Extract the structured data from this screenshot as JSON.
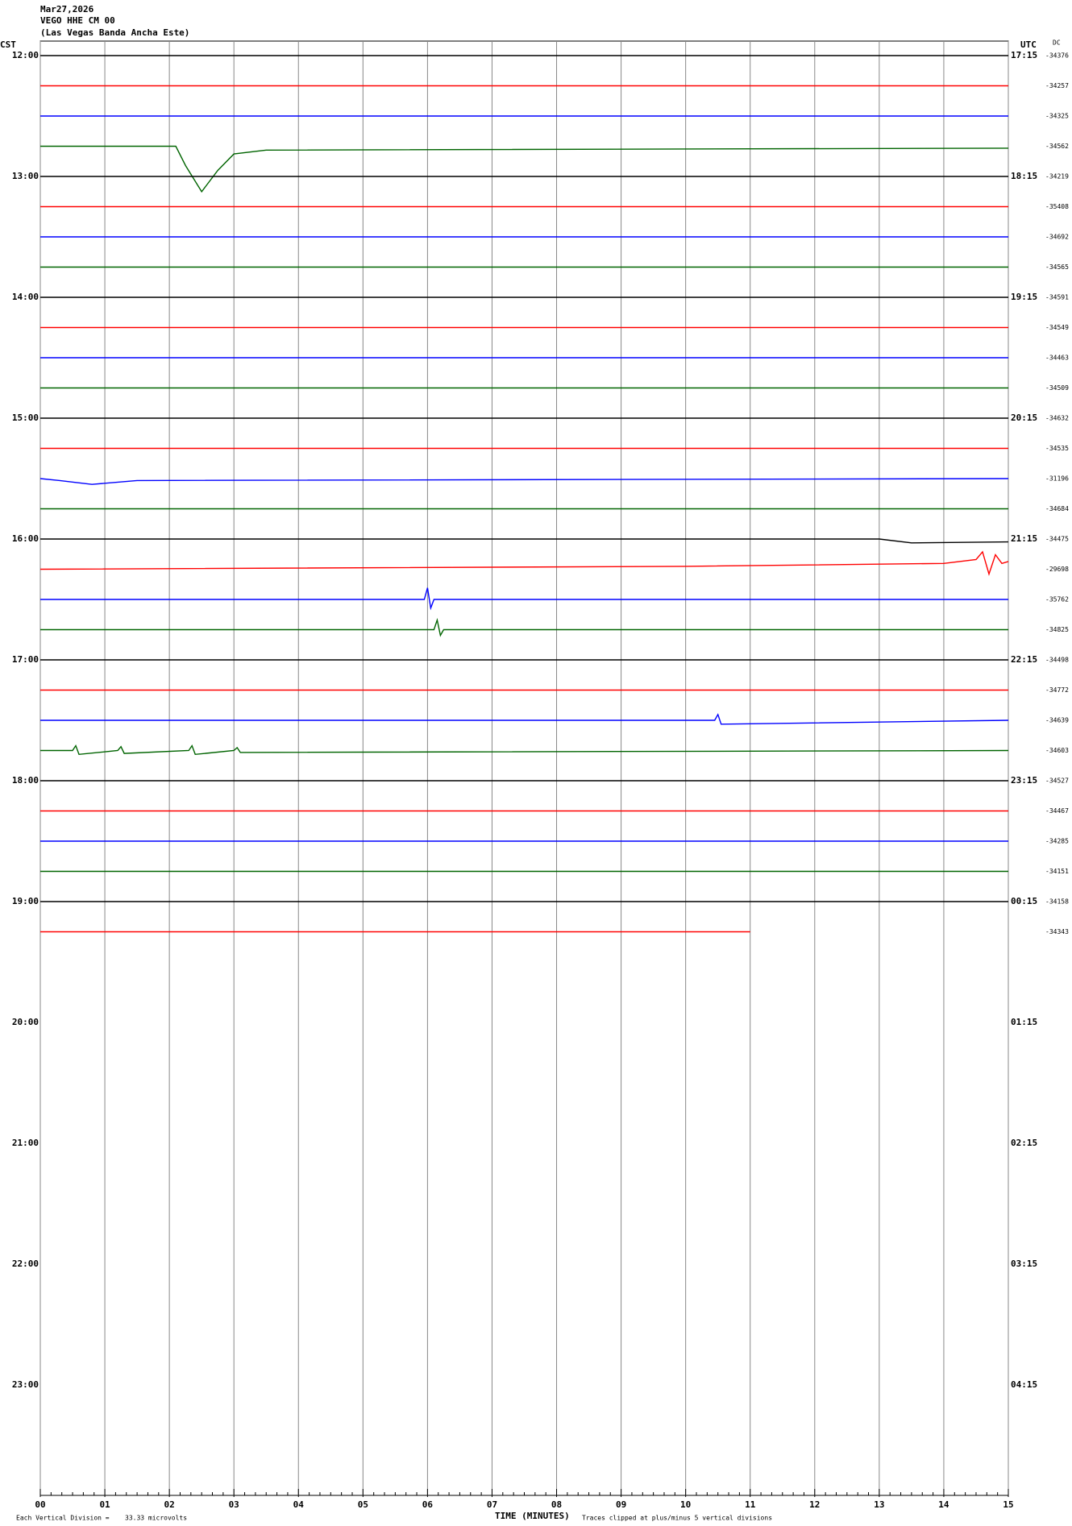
{
  "chart_data": {
    "type": "helicorder",
    "header": [
      "Mar27,2026",
      "VEGO HHE CM 00",
      "(Las Vegas Banda Ancha Este)"
    ],
    "left_axis_title": "CST",
    "right_axis_title": "UTC",
    "dc_title": "DC",
    "hours_cst": [
      "12:00",
      "13:00",
      "14:00",
      "15:00",
      "16:00",
      "17:00",
      "18:00",
      "19:00",
      "20:00",
      "21:00",
      "22:00",
      "23:00"
    ],
    "hours_utc": [
      "17:15",
      "18:15",
      "19:15",
      "20:15",
      "21:15",
      "22:15",
      "23:15",
      "00:15",
      "01:15",
      "02:15",
      "03:15",
      "04:15"
    ],
    "xlabel": "TIME (MINUTES)",
    "xlim": [
      0,
      15
    ],
    "xticks": [
      {
        "value": 0,
        "label": "00"
      },
      {
        "value": 1,
        "label": "01"
      },
      {
        "value": 2,
        "label": "02"
      },
      {
        "value": 3,
        "label": "03"
      },
      {
        "value": 4,
        "label": "04"
      },
      {
        "value": 5,
        "label": "05"
      },
      {
        "value": 6,
        "label": "06"
      },
      {
        "value": 7,
        "label": "07"
      },
      {
        "value": 8,
        "label": "08"
      },
      {
        "value": 9,
        "label": "09"
      },
      {
        "value": 10,
        "label": "10"
      },
      {
        "value": 11,
        "label": "11"
      },
      {
        "value": 12,
        "label": "12"
      },
      {
        "value": 13,
        "label": "13"
      },
      {
        "value": 14,
        "label": "14"
      },
      {
        "value": 15,
        "label": "15"
      }
    ],
    "footer_scale_label": "Each Vertical Division =",
    "footer_scale_value": "33.33 microvolts",
    "footer_clip_note": "Traces clipped at plus/minus 5 vertical divisions",
    "traces": [
      {
        "color": "#000000",
        "dc": "-34376",
        "x": [
          0,
          15
        ],
        "values": [
          0,
          0
        ]
      },
      {
        "color": "#ff0000",
        "dc": "-34257",
        "x": [
          0,
          15
        ],
        "values": [
          0,
          0
        ]
      },
      {
        "color": "#0000ff",
        "dc": "-34325",
        "x": [
          0,
          15
        ],
        "values": [
          0,
          0
        ]
      },
      {
        "color": "#006400",
        "dc": "-34562",
        "x": [
          0,
          2.1,
          2.25,
          2.5,
          2.75,
          3,
          3.5,
          15
        ],
        "values": [
          0,
          0,
          -2,
          -4.7,
          -2.5,
          -0.8,
          -0.4,
          -0.2
        ]
      },
      {
        "color": "#000000",
        "dc": "-34219",
        "x": [
          0,
          15
        ],
        "values": [
          0,
          0
        ]
      },
      {
        "color": "#ff0000",
        "dc": "-35408",
        "x": [
          0,
          15
        ],
        "values": [
          0,
          0
        ]
      },
      {
        "color": "#0000ff",
        "dc": "-34692",
        "x": [
          0,
          15
        ],
        "values": [
          0,
          0
        ]
      },
      {
        "color": "#006400",
        "dc": "-34565",
        "x": [
          0,
          15
        ],
        "values": [
          0,
          0
        ]
      },
      {
        "color": "#000000",
        "dc": "-34591",
        "x": [
          0,
          15
        ],
        "values": [
          0,
          0
        ]
      },
      {
        "color": "#ff0000",
        "dc": "-34549",
        "x": [
          0,
          15
        ],
        "values": [
          0,
          0
        ]
      },
      {
        "color": "#0000ff",
        "dc": "-34463",
        "x": [
          0,
          15
        ],
        "values": [
          0,
          0
        ]
      },
      {
        "color": "#006400",
        "dc": "-34509",
        "x": [
          0,
          15
        ],
        "values": [
          0,
          0
        ]
      },
      {
        "color": "#000000",
        "dc": "-34632",
        "x": [
          0,
          15
        ],
        "values": [
          0,
          0
        ]
      },
      {
        "color": "#ff0000",
        "dc": "-34535",
        "x": [
          0,
          15
        ],
        "values": [
          0,
          0
        ]
      },
      {
        "color": "#0000ff",
        "dc": "-31196",
        "x": [
          0,
          0.3,
          0.8,
          1.5,
          15
        ],
        "values": [
          0,
          -0.2,
          -0.6,
          -0.2,
          0
        ]
      },
      {
        "color": "#006400",
        "dc": "-34684",
        "x": [
          0,
          15
        ],
        "values": [
          0,
          0
        ]
      },
      {
        "color": "#000000",
        "dc": "-34475",
        "x": [
          0,
          13,
          13.5,
          15
        ],
        "values": [
          0,
          0,
          -0.4,
          -0.3
        ]
      },
      {
        "color": "#ff0000",
        "dc": "-29698",
        "x": [
          0,
          10,
          14,
          14.5,
          14.6,
          14.7,
          14.8,
          14.9,
          15
        ],
        "values": [
          0,
          0.3,
          0.6,
          1,
          1.8,
          -0.5,
          1.5,
          0.6,
          0.8
        ]
      },
      {
        "color": "#0000ff",
        "dc": "-35762",
        "x": [
          0,
          5.95,
          6,
          6.05,
          6.1,
          15
        ],
        "values": [
          0,
          0,
          1.2,
          -0.9,
          0,
          0
        ]
      },
      {
        "color": "#006400",
        "dc": "-34825",
        "x": [
          0,
          6.1,
          6.15,
          6.2,
          6.25,
          15
        ],
        "values": [
          0,
          0,
          1,
          -0.6,
          0,
          0
        ]
      },
      {
        "color": "#000000",
        "dc": "-34498",
        "x": [
          0,
          15
        ],
        "values": [
          0,
          0
        ]
      },
      {
        "color": "#ff0000",
        "dc": "-34772",
        "x": [
          0,
          15
        ],
        "values": [
          0,
          0
        ]
      },
      {
        "color": "#0000ff",
        "dc": "-34639",
        "x": [
          0,
          10.45,
          10.5,
          10.55,
          15
        ],
        "values": [
          0,
          0,
          0.6,
          -0.4,
          0
        ]
      },
      {
        "color": "#006400",
        "dc": "-34603",
        "x": [
          0,
          0.5,
          0.55,
          0.6,
          1.2,
          1.25,
          1.3,
          2.3,
          2.35,
          2.4,
          3,
          3.05,
          3.1,
          15
        ],
        "values": [
          0,
          0,
          0.5,
          -0.4,
          0,
          0.4,
          -0.3,
          0,
          0.5,
          -0.4,
          0,
          0.3,
          -0.2,
          0
        ]
      },
      {
        "color": "#000000",
        "dc": "-34527",
        "x": [
          0,
          15
        ],
        "values": [
          0,
          0
        ]
      },
      {
        "color": "#ff0000",
        "dc": "-34467",
        "x": [
          0,
          15
        ],
        "values": [
          0,
          0
        ]
      },
      {
        "color": "#0000ff",
        "dc": "-34285",
        "x": [
          0,
          15
        ],
        "values": [
          0,
          0
        ]
      },
      {
        "color": "#006400",
        "dc": "-34151",
        "x": [
          0,
          15
        ],
        "values": [
          0,
          0
        ]
      },
      {
        "color": "#000000",
        "dc": "-34158",
        "x": [
          0,
          15
        ],
        "values": [
          0,
          0
        ]
      },
      {
        "color": "#ff0000",
        "dc": "-34343",
        "x": [
          0,
          11
        ],
        "values": [
          0,
          0
        ]
      }
    ]
  }
}
